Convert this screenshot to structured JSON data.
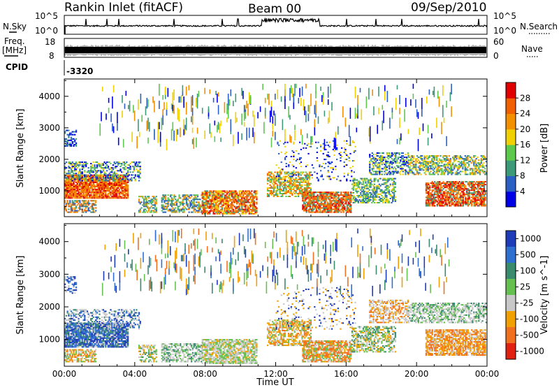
{
  "header": {
    "station": "Rankin Inlet (fitACF)",
    "beam": "Beam 00",
    "date": "09/Sep/2010"
  },
  "strips": {
    "nsky_label": "N.Sky",
    "nsky_ticks": [
      "10^5",
      "10^0"
    ],
    "nsearch_label": "N.Search",
    "nsearch_ticks": [
      "10^5",
      "10^0"
    ],
    "freq_label": "Freq.",
    "freq_unit": "[MHz]",
    "freq_ticks": [
      "18",
      "8"
    ],
    "nave_label": "Nave",
    "nave_ticks": [
      "60",
      "0"
    ],
    "cpid_label": "CPID",
    "cpid_value": "-3320"
  },
  "colors": {
    "power": [
      "#0000e6",
      "#2a5fc4",
      "#3d9a78",
      "#5cc84c",
      "#f0d000",
      "#f39000",
      "#f06000",
      "#e00000"
    ],
    "velocity": [
      "#1e3bb8",
      "#2f6fd0",
      "#3a8a6e",
      "#66c050",
      "#c8c8c8",
      "#f0a000",
      "#f07020",
      "#e02010"
    ]
  },
  "chart_data": [
    {
      "type": "heatmap",
      "panel": "power",
      "ylabel": "Slant Range [km]",
      "yticks": [
        "1000",
        "2000",
        "3000",
        "4000"
      ],
      "ylim": [
        180,
        4550
      ],
      "xlim_hours": [
        0,
        24
      ],
      "colorbar_label": "Power [dB]",
      "colorbar_ticks": [
        "4",
        "8",
        "12",
        "16",
        "20",
        "24",
        "28"
      ],
      "colorbar_range": [
        0,
        32
      ]
    },
    {
      "type": "heatmap",
      "panel": "velocity",
      "ylabel": "Slant Range [km]",
      "yticks": [
        "1000",
        "2000",
        "3000",
        "4000"
      ],
      "ylim": [
        180,
        4550
      ],
      "xlim_hours": [
        0,
        24
      ],
      "colorbar_label": "Velocity [m s^-1]",
      "colorbar_ticks": [
        "1000",
        "500",
        "100",
        "25",
        "-25",
        "-100",
        "-500",
        "-1000"
      ]
    }
  ],
  "xaxis": {
    "label": "Time UT",
    "ticks": [
      "00:00",
      "04:00",
      "08:00",
      "12:00",
      "16:00",
      "20:00",
      "00:00"
    ]
  }
}
